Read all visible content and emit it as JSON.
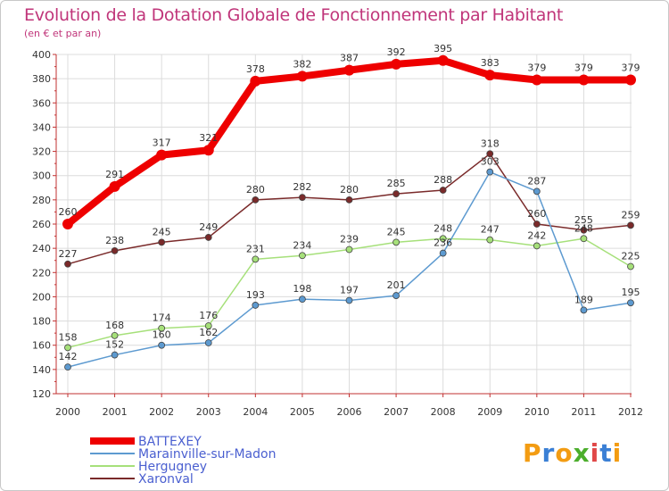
{
  "title": "Evolution de la Dotation Globale de Fonctionnement par Habitant",
  "subtitle": "(en € et par an)",
  "logo": {
    "text": "Proxiti",
    "letters": [
      "P",
      "r",
      "o",
      "x",
      "i",
      "t",
      "i"
    ],
    "colors": [
      "#f39c12",
      "#3a7fd5",
      "#f39c12",
      "#4cae2c",
      "#e04848",
      "#3a7fd5",
      "#f39c12"
    ]
  },
  "chart_data": {
    "type": "line",
    "title": "Evolution de la Dotation Globale de Fonctionnement par Habitant",
    "subtitle": "(en € et par an)",
    "xlabel": "",
    "ylabel": "",
    "categories": [
      "2000",
      "2001",
      "2002",
      "2003",
      "2004",
      "2005",
      "2006",
      "2007",
      "2008",
      "2009",
      "2010",
      "2011",
      "2012"
    ],
    "ylim": [
      120,
      400
    ],
    "yticks": [
      120,
      140,
      160,
      180,
      200,
      220,
      240,
      260,
      280,
      300,
      320,
      340,
      360,
      380,
      400
    ],
    "grid": true,
    "legend_position": "bottom-left",
    "series": [
      {
        "name": "BATTEXEY",
        "color": "#ee0000",
        "values": [
          260,
          291,
          317,
          321,
          378,
          382,
          387,
          392,
          395,
          383,
          379,
          379,
          379
        ],
        "labels_shown": true
      },
      {
        "name": "Marainville-sur-Madon",
        "color": "#5d9ad0",
        "values": [
          142,
          152,
          160,
          162,
          193,
          198,
          197,
          201,
          236,
          303,
          287,
          189,
          195
        ],
        "labels_shown": true
      },
      {
        "name": "Hergugney",
        "color": "#a6e07a",
        "values": [
          158,
          168,
          174,
          176,
          231,
          234,
          239,
          245,
          248,
          247,
          242,
          248,
          225
        ],
        "labels_shown": true
      },
      {
        "name": "Xaronval",
        "color": "#7a2a2a",
        "values": [
          227,
          238,
          245,
          249,
          280,
          282,
          280,
          285,
          288,
          318,
          260,
          255,
          259
        ],
        "labels_shown": true
      }
    ]
  }
}
